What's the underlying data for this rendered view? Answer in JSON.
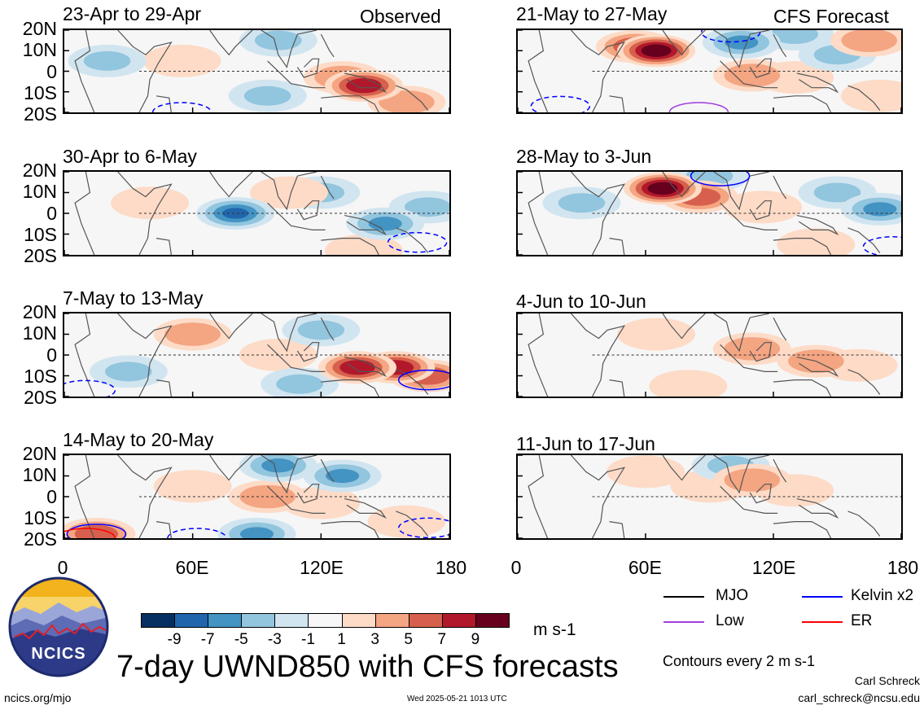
{
  "panels": [
    {
      "title": "23-Apr to 29-Apr",
      "corner_label": "Observed"
    },
    {
      "title": "30-Apr to 6-May",
      "corner_label": ""
    },
    {
      "title": "7-May to 13-May",
      "corner_label": ""
    },
    {
      "title": "14-May to 20-May",
      "corner_label": ""
    },
    {
      "title": "21-May to 27-May",
      "corner_label": "CFS Forecast"
    },
    {
      "title": "28-May to 3-Jun",
      "corner_label": ""
    },
    {
      "title": "4-Jun to 10-Jun",
      "corner_label": ""
    },
    {
      "title": "11-Jun to 17-Jun",
      "corner_label": ""
    }
  ],
  "y_ticks": [
    "20N",
    "10N",
    "0",
    "10S",
    "20S"
  ],
  "x_ticks": [
    "0",
    "60E",
    "120E",
    "180"
  ],
  "colorbar": {
    "labels": [
      "-9",
      "-7",
      "-5",
      "-3",
      "-1",
      "1",
      "3",
      "5",
      "7",
      "9"
    ],
    "colors": [
      "#053061",
      "#2166ac",
      "#4393c3",
      "#92c5de",
      "#d1e5f0",
      "#f7f7f7",
      "#fddbc7",
      "#f4a582",
      "#d6604d",
      "#b2182b",
      "#67001f"
    ],
    "unit": "m s-1"
  },
  "legend": [
    {
      "label": "MJO",
      "color": "#000000"
    },
    {
      "label": "Kelvin x2",
      "color": "#0000ff"
    },
    {
      "label": "Low",
      "color": "#a040e0"
    },
    {
      "label": "ER",
      "color": "#ff0000"
    }
  ],
  "logo_text": "NCICS",
  "main_title": "7-day UWND850 with CFS forecasts",
  "contour_note": "Contours every 2 m s-1",
  "author": "Carl Schreck",
  "email": "carl_schreck@ncsu.edu",
  "site": "ncics.org/mjo",
  "timestamp": "Wed 2025-05-21 1013 UTC",
  "chart_data": {
    "type": "heatmap",
    "variable": "UWND850",
    "unit": "m s-1",
    "x_axis": {
      "range_deg_east": [
        0,
        180
      ],
      "ticks": [
        "0",
        "60E",
        "120E",
        "180"
      ]
    },
    "y_axis": {
      "range_deg": [
        -20,
        20
      ],
      "ticks": [
        "20N",
        "10N",
        "0",
        "10S",
        "20S"
      ]
    },
    "color_levels": [
      -9,
      -7,
      -5,
      -3,
      -1,
      1,
      3,
      5,
      7,
      9
    ],
    "panels": [
      {
        "period": "23-Apr to 29-Apr",
        "source": "Observed",
        "anomalies": [
          {
            "lon": 140,
            "lat": -7,
            "value": 9
          },
          {
            "lon": 130,
            "lat": -3,
            "value": 5
          },
          {
            "lon": 160,
            "lat": -15,
            "value": 5
          },
          {
            "lon": 55,
            "lat": 5,
            "value": 3
          },
          {
            "lon": 20,
            "lat": 5,
            "value": -3
          },
          {
            "lon": 100,
            "lat": 15,
            "value": -3
          },
          {
            "lon": 95,
            "lat": -12,
            "value": -3
          }
        ]
      },
      {
        "period": "30-Apr to 6-May",
        "source": "Observed",
        "anomalies": [
          {
            "lon": 80,
            "lat": 0,
            "value": -7
          },
          {
            "lon": 150,
            "lat": -5,
            "value": -5
          },
          {
            "lon": 170,
            "lat": 3,
            "value": -3
          },
          {
            "lon": 120,
            "lat": 10,
            "value": -3
          },
          {
            "lon": 105,
            "lat": 10,
            "value": 3
          },
          {
            "lon": 40,
            "lat": 5,
            "value": 3
          },
          {
            "lon": 140,
            "lat": -18,
            "value": 3
          }
        ]
      },
      {
        "period": "7-May to 13-May",
        "source": "Observed",
        "anomalies": [
          {
            "lon": 155,
            "lat": -6,
            "value": 9
          },
          {
            "lon": 137,
            "lat": -6,
            "value": 9
          },
          {
            "lon": 170,
            "lat": -10,
            "value": 7
          },
          {
            "lon": 60,
            "lat": 10,
            "value": 5
          },
          {
            "lon": 100,
            "lat": 0,
            "value": 3
          },
          {
            "lon": 30,
            "lat": -8,
            "value": -3
          },
          {
            "lon": 110,
            "lat": -14,
            "value": -3
          },
          {
            "lon": 120,
            "lat": 12,
            "value": -3
          }
        ]
      },
      {
        "period": "14-May to 20-May",
        "source": "Observed",
        "anomalies": [
          {
            "lon": 95,
            "lat": 0,
            "value": 5
          },
          {
            "lon": 120,
            "lat": -3,
            "value": 3
          },
          {
            "lon": 60,
            "lat": 5,
            "value": 3
          },
          {
            "lon": 160,
            "lat": -12,
            "value": 3
          },
          {
            "lon": 15,
            "lat": -18,
            "value": 7
          },
          {
            "lon": 100,
            "lat": 15,
            "value": -5
          },
          {
            "lon": 130,
            "lat": 10,
            "value": -5
          },
          {
            "lon": 90,
            "lat": -18,
            "value": -5
          }
        ]
      },
      {
        "period": "21-May to 27-May",
        "source": "CFS Forecast",
        "anomalies": [
          {
            "lon": 65,
            "lat": 10,
            "value": 11
          },
          {
            "lon": 55,
            "lat": 12,
            "value": 7
          },
          {
            "lon": 110,
            "lat": -2,
            "value": 5
          },
          {
            "lon": 130,
            "lat": -3,
            "value": 3
          },
          {
            "lon": 165,
            "lat": 15,
            "value": 5
          },
          {
            "lon": 170,
            "lat": -12,
            "value": 3
          },
          {
            "lon": 105,
            "lat": 14,
            "value": -5
          },
          {
            "lon": 150,
            "lat": 8,
            "value": -3
          },
          {
            "lon": 130,
            "lat": 18,
            "value": -3
          }
        ]
      },
      {
        "period": "28-May to 3-Jun",
        "source": "CFS Forecast",
        "anomalies": [
          {
            "lon": 68,
            "lat": 12,
            "value": 11
          },
          {
            "lon": 85,
            "lat": 8,
            "value": 7
          },
          {
            "lon": 115,
            "lat": 3,
            "value": 3
          },
          {
            "lon": 140,
            "lat": -15,
            "value": 3
          },
          {
            "lon": 170,
            "lat": 2,
            "value": -5
          },
          {
            "lon": 150,
            "lat": 10,
            "value": -3
          },
          {
            "lon": 90,
            "lat": 18,
            "value": -3
          },
          {
            "lon": 30,
            "lat": 5,
            "value": -3
          }
        ]
      },
      {
        "period": "4-Jun to 10-Jun",
        "source": "CFS Forecast",
        "anomalies": [
          {
            "lon": 140,
            "lat": -3,
            "value": 5
          },
          {
            "lon": 110,
            "lat": 3,
            "value": 5
          },
          {
            "lon": 160,
            "lat": -5,
            "value": 3
          },
          {
            "lon": 65,
            "lat": 10,
            "value": 3
          },
          {
            "lon": 80,
            "lat": -15,
            "value": 3
          }
        ]
      },
      {
        "period": "11-Jun to 17-Jun",
        "source": "CFS Forecast",
        "anomalies": [
          {
            "lon": 110,
            "lat": 8,
            "value": 5
          },
          {
            "lon": 90,
            "lat": 5,
            "value": 3
          },
          {
            "lon": 130,
            "lat": 3,
            "value": 3
          },
          {
            "lon": 60,
            "lat": 12,
            "value": 3
          },
          {
            "lon": 100,
            "lat": 15,
            "value": -3
          }
        ]
      }
    ],
    "contours": [
      {
        "panel": "23-Apr to 29-Apr",
        "type": "Kelvin x2",
        "sign": "negative",
        "lon": 55,
        "lat": -20
      },
      {
        "panel": "30-Apr to 6-May",
        "type": "Kelvin x2",
        "sign": "negative",
        "lon": 165,
        "lat": -14
      },
      {
        "panel": "7-May to 13-May",
        "type": "Kelvin x2",
        "sign": "positive",
        "lon": 170,
        "lat": -12
      },
      {
        "panel": "7-May to 13-May",
        "type": "Kelvin x2",
        "sign": "negative",
        "lon": 10,
        "lat": -17
      },
      {
        "panel": "14-May to 20-May",
        "type": "Kelvin x2",
        "sign": "positive",
        "lon": 15,
        "lat": -18
      },
      {
        "panel": "14-May to 20-May",
        "type": "ER",
        "sign": "positive",
        "lon": 10,
        "lat": -20
      },
      {
        "panel": "14-May to 20-May",
        "type": "Kelvin x2",
        "sign": "negative",
        "lon": 62,
        "lat": -20
      },
      {
        "panel": "14-May to 20-May",
        "type": "Kelvin x2",
        "sign": "negative",
        "lon": 170,
        "lat": -15
      },
      {
        "panel": "21-May to 27-May",
        "type": "Kelvin x2",
        "sign": "negative",
        "lon": 100,
        "lat": 19
      },
      {
        "panel": "21-May to 27-May",
        "type": "Kelvin x2",
        "sign": "negative",
        "lon": 20,
        "lat": -17
      },
      {
        "panel": "21-May to 27-May",
        "type": "Low",
        "sign": "positive",
        "lon": 85,
        "lat": -20
      },
      {
        "panel": "28-May to 3-Jun",
        "type": "Kelvin x2",
        "sign": "positive",
        "lon": 95,
        "lat": 18
      },
      {
        "panel": "28-May to 3-Jun",
        "type": "Kelvin x2",
        "sign": "negative",
        "lon": 176,
        "lat": -16
      }
    ]
  }
}
